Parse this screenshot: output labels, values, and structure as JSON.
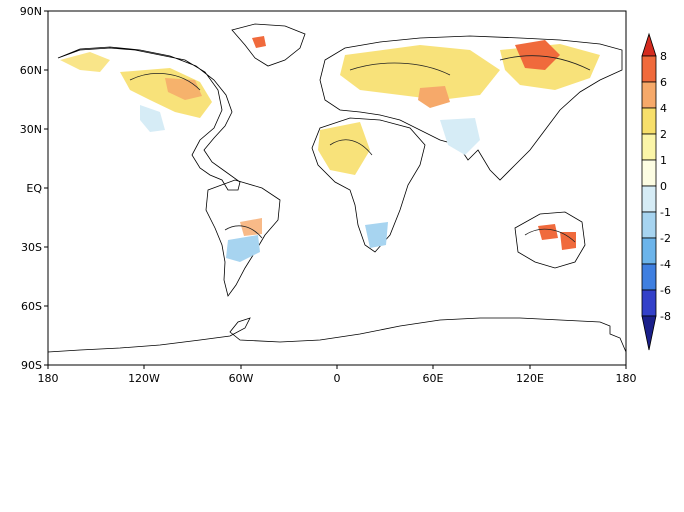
{
  "map": {
    "lon_ticks": [
      "180",
      "120W",
      "60W",
      "0",
      "60E",
      "120E",
      "180"
    ],
    "lat_ticks": [
      "90N",
      "60N",
      "30N",
      "EQ",
      "30S",
      "60S",
      "90S"
    ]
  },
  "colorbar": {
    "labels": [
      "8",
      "6",
      "4",
      "2",
      "1",
      "0",
      "-1",
      "-2",
      "-4",
      "-6",
      "-8"
    ],
    "colors": [
      "#d42b1f",
      "#f06a3c",
      "#f6a96a",
      "#f7df6b",
      "#fbf5a8",
      "#fdfde3",
      "#d6ecf6",
      "#a7d4f0",
      "#6cb4ea",
      "#3f7fe0",
      "#3340c9",
      "#1a1f8a"
    ]
  },
  "chart_data": {
    "type": "heatmap",
    "x_range": [
      "180",
      "180"
    ],
    "y_range": [
      "90S",
      "90N"
    ],
    "levels": [
      -8,
      -6,
      -4,
      -2,
      -1,
      0,
      1,
      2,
      4,
      6,
      8
    ],
    "grid": false
  }
}
